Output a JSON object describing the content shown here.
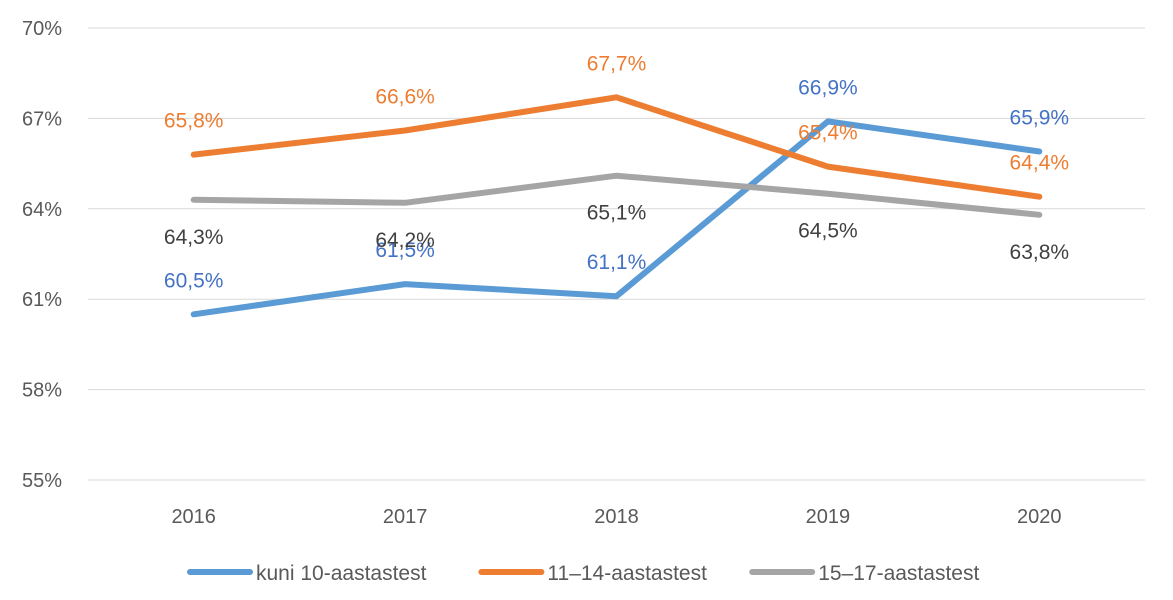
{
  "chart_data": {
    "type": "line",
    "title": "",
    "xlabel": "",
    "ylabel": "",
    "categories": [
      "2016",
      "2017",
      "2018",
      "2019",
      "2020"
    ],
    "ylim": [
      55,
      70
    ],
    "yticks": [
      55,
      58,
      61,
      64,
      67,
      70
    ],
    "ytick_labels": [
      "55%",
      "58%",
      "61%",
      "64%",
      "67%",
      "70%"
    ],
    "grid": true,
    "legend_position": "bottom",
    "series": [
      {
        "name": "kuni 10-aastastest",
        "color": "#5b9bd5",
        "label_color": "#4472c4",
        "values": [
          60.5,
          61.5,
          61.1,
          66.9,
          65.9
        ],
        "labels": [
          "60,5%",
          "61,5%",
          "61,1%",
          "66,9%",
          "65,9%"
        ],
        "label_placement": [
          "above",
          "above",
          "above",
          "above",
          "above"
        ]
      },
      {
        "name": "11–14-aastastest",
        "color": "#ed7d31",
        "label_color": "#ed7d31",
        "values": [
          65.8,
          66.6,
          67.7,
          65.4,
          64.4
        ],
        "labels": [
          "65,8%",
          "66,6%",
          "67,7%",
          "65,4%",
          "64,4%"
        ],
        "label_placement": [
          "above",
          "above",
          "above",
          "above",
          "above"
        ]
      },
      {
        "name": "15–17-aastastest",
        "color": "#a5a5a5",
        "label_color": "#404040",
        "values": [
          64.3,
          64.2,
          65.1,
          64.5,
          63.8
        ],
        "labels": [
          "64,3%",
          "64,2%",
          "65,1%",
          "64,5%",
          "63,8%"
        ],
        "label_placement": [
          "below",
          "below",
          "below",
          "below",
          "below"
        ]
      }
    ]
  }
}
